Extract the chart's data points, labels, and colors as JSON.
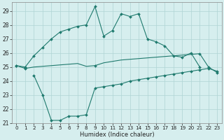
{
  "xlabel": "Humidex (Indice chaleur)",
  "x": [
    0,
    1,
    2,
    3,
    4,
    5,
    6,
    7,
    8,
    9,
    10,
    11,
    12,
    13,
    14,
    15,
    16,
    17,
    18,
    19,
    20,
    21,
    22,
    23
  ],
  "line1": [
    25.1,
    25.0,
    25.8,
    26.4,
    27.0,
    27.5,
    27.7,
    27.9,
    28.0,
    29.3,
    27.2,
    27.6,
    28.8,
    28.6,
    28.8,
    27.0,
    26.8,
    26.5,
    25.8,
    25.7,
    26.0,
    25.0,
    null,
    null
  ],
  "line2": [
    25.1,
    24.9,
    25.0,
    25.05,
    25.1,
    25.15,
    25.2,
    25.25,
    25.05,
    25.1,
    25.3,
    25.4,
    25.5,
    25.55,
    25.6,
    25.65,
    25.7,
    25.75,
    25.8,
    25.85,
    25.9,
    25.95,
    25.0,
    24.6
  ],
  "line3": [
    null,
    null,
    24.4,
    23.0,
    21.2,
    21.2,
    21.5,
    21.5,
    21.6,
    23.5,
    23.6,
    23.7,
    23.8,
    24.0,
    24.1,
    24.2,
    24.3,
    24.4,
    24.5,
    24.6,
    24.7,
    24.8,
    24.9,
    24.7
  ],
  "line2_marker_x": [
    0,
    1,
    9,
    21,
    22,
    23
  ],
  "color": "#1f7a6e",
  "bg_color": "#d6eeee",
  "grid_color": "#aed4d4",
  "ylim": [
    21,
    29.6
  ],
  "xlim": [
    -0.5,
    23.5
  ],
  "yticks": [
    21,
    22,
    23,
    24,
    25,
    26,
    27,
    28,
    29
  ],
  "xticks": [
    0,
    1,
    2,
    3,
    4,
    5,
    6,
    7,
    8,
    9,
    10,
    11,
    12,
    13,
    14,
    15,
    16,
    17,
    18,
    19,
    20,
    21,
    22,
    23
  ]
}
